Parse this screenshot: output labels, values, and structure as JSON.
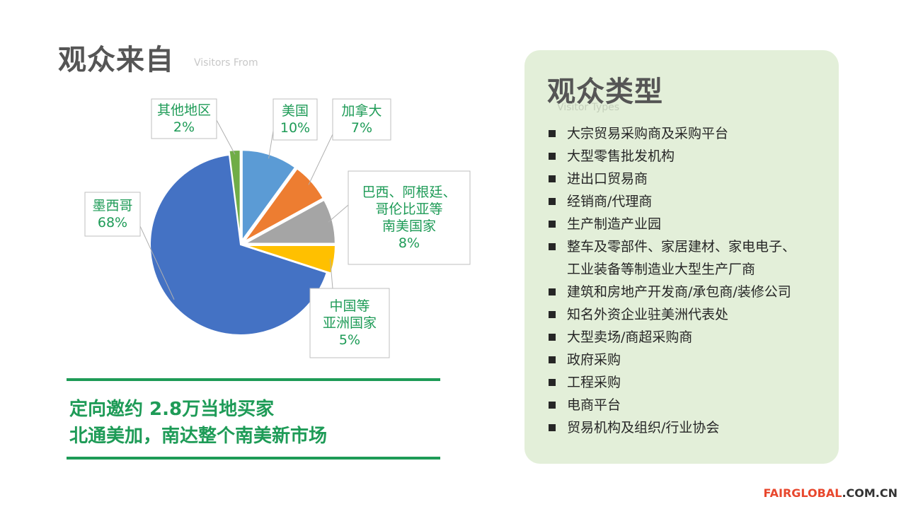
{
  "left": {
    "title": "观众来自",
    "subtitle": "Visitors From"
  },
  "chart_data": {
    "type": "pie",
    "slices": [
      {
        "label": "美国",
        "value": 10,
        "percent_label": "10%",
        "color": "#5b9bd5"
      },
      {
        "label": "加拿大",
        "value": 7,
        "percent_label": "7%",
        "color": "#ed7d31"
      },
      {
        "label": "巴西、阿根廷、\n哥伦比亚等\n南美国家",
        "value": 8,
        "percent_label": "8%",
        "color": "#a5a5a5"
      },
      {
        "label": "中国等\n亚洲国家",
        "value": 5,
        "percent_label": "5%",
        "color": "#ffc000"
      },
      {
        "label": "墨西哥",
        "value": 68,
        "percent_label": "68%",
        "color": "#4472c4"
      },
      {
        "label": "其他地区",
        "value": 2,
        "percent_label": "2%",
        "color": "#70ad47"
      }
    ],
    "label_color": "#1e9b57",
    "legend": "none"
  },
  "highlight": {
    "line1": "定向邀约 2.8万当地买家",
    "line2": "北通美加，南达整个南美新市场"
  },
  "right_panel": {
    "title": "观众类型",
    "subtitle": "Visitor Types",
    "items": [
      "大宗贸易采购商及采购平台",
      "大型零售批发机构",
      "进出口贸易商",
      "经销商/代理商",
      "生产制造产业园",
      "整车及零部件、家居建材、家电电子、\n工业装备等制造业大型生产厂商",
      "建筑和房地产开发商/承包商/装修公司",
      "知名外资企业驻美洲代表处",
      "大型卖场/商超采购商",
      "政府采购",
      "工程采购",
      "电商平台",
      "贸易机构及组织/行业协会"
    ]
  },
  "brand": {
    "part1": "FAIRGLOBAL",
    "part2": ".COM.CN"
  },
  "colors": {
    "accent": "#1e9b57",
    "panel_bg": "#e3efd9",
    "brand_red": "#e8472d"
  }
}
